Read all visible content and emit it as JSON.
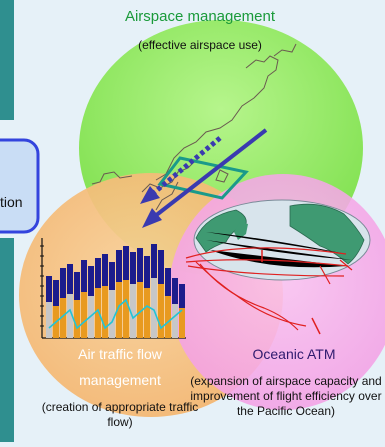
{
  "circles": {
    "airspace": {
      "title": "Airspace management",
      "subtitle": "(effective airspace use)",
      "color": "#99ee66"
    },
    "traffic_flow": {
      "title_line1": "Air traffic flow",
      "title_line2": "management",
      "subtitle": "(creation of appropriate traffic flow)",
      "color": "#f5c07a"
    },
    "oceanic": {
      "title": "Oceanic ATM",
      "subtitle": "(expansion of airspace capacity and improvement of flight efficiency over the Pacific Ocean)",
      "color": "#f5a6e8"
    }
  },
  "side_panel": {
    "partial_label": "tion",
    "border_color": "#3344dd"
  },
  "icons": [
    "japan-map-icon",
    "globe-map-icon",
    "bar-chart-icon",
    "dotted-arrow-icon",
    "solid-arrow-icon"
  ]
}
